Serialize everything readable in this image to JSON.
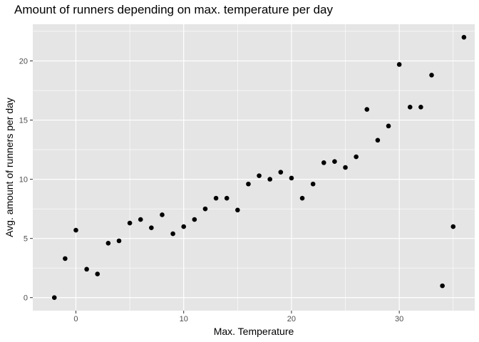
{
  "chart_data": {
    "type": "scatter",
    "title": "Amount of runners depending on max. temperature per day",
    "xlabel": "Max. Temperature",
    "ylabel": "Avg. amount of runners per day",
    "xlim": [
      -4,
      37
    ],
    "ylim": [
      -1.1,
      23.1
    ],
    "x_ticks": [
      0,
      10,
      20,
      30
    ],
    "y_ticks": [
      0,
      5,
      10,
      15,
      20
    ],
    "x_tick_labels": [
      "0",
      "10",
      "20",
      "30"
    ],
    "y_tick_labels": [
      "0",
      "5",
      "10",
      "15",
      "20"
    ],
    "grid": true,
    "background": "#e5e5e5",
    "gridline_color": "#ffffff",
    "point_color": "#000000",
    "points": [
      {
        "x": -2,
        "y": 0.0
      },
      {
        "x": -1,
        "y": 3.3
      },
      {
        "x": 0,
        "y": 5.7
      },
      {
        "x": 1,
        "y": 2.4
      },
      {
        "x": 2,
        "y": 2.0
      },
      {
        "x": 3,
        "y": 4.6
      },
      {
        "x": 4,
        "y": 4.8
      },
      {
        "x": 5,
        "y": 6.3
      },
      {
        "x": 6,
        "y": 6.6
      },
      {
        "x": 7,
        "y": 5.9
      },
      {
        "x": 8,
        "y": 7.0
      },
      {
        "x": 9,
        "y": 5.4
      },
      {
        "x": 10,
        "y": 6.0
      },
      {
        "x": 11,
        "y": 6.6
      },
      {
        "x": 12,
        "y": 7.5
      },
      {
        "x": 13,
        "y": 8.4
      },
      {
        "x": 14,
        "y": 8.4
      },
      {
        "x": 15,
        "y": 7.4
      },
      {
        "x": 16,
        "y": 9.6
      },
      {
        "x": 17,
        "y": 10.3
      },
      {
        "x": 18,
        "y": 10.0
      },
      {
        "x": 19,
        "y": 10.6
      },
      {
        "x": 20,
        "y": 10.1
      },
      {
        "x": 21,
        "y": 8.4
      },
      {
        "x": 22,
        "y": 9.6
      },
      {
        "x": 23,
        "y": 11.4
      },
      {
        "x": 24,
        "y": 11.5
      },
      {
        "x": 25,
        "y": 11.0
      },
      {
        "x": 26,
        "y": 11.9
      },
      {
        "x": 27,
        "y": 15.9
      },
      {
        "x": 28,
        "y": 13.3
      },
      {
        "x": 29,
        "y": 14.5
      },
      {
        "x": 30,
        "y": 19.7
      },
      {
        "x": 31,
        "y": 16.1
      },
      {
        "x": 32,
        "y": 16.1
      },
      {
        "x": 33,
        "y": 18.8
      },
      {
        "x": 34,
        "y": 1.0
      },
      {
        "x": 35,
        "y": 6.0
      },
      {
        "x": 36,
        "y": 22.0
      }
    ]
  }
}
